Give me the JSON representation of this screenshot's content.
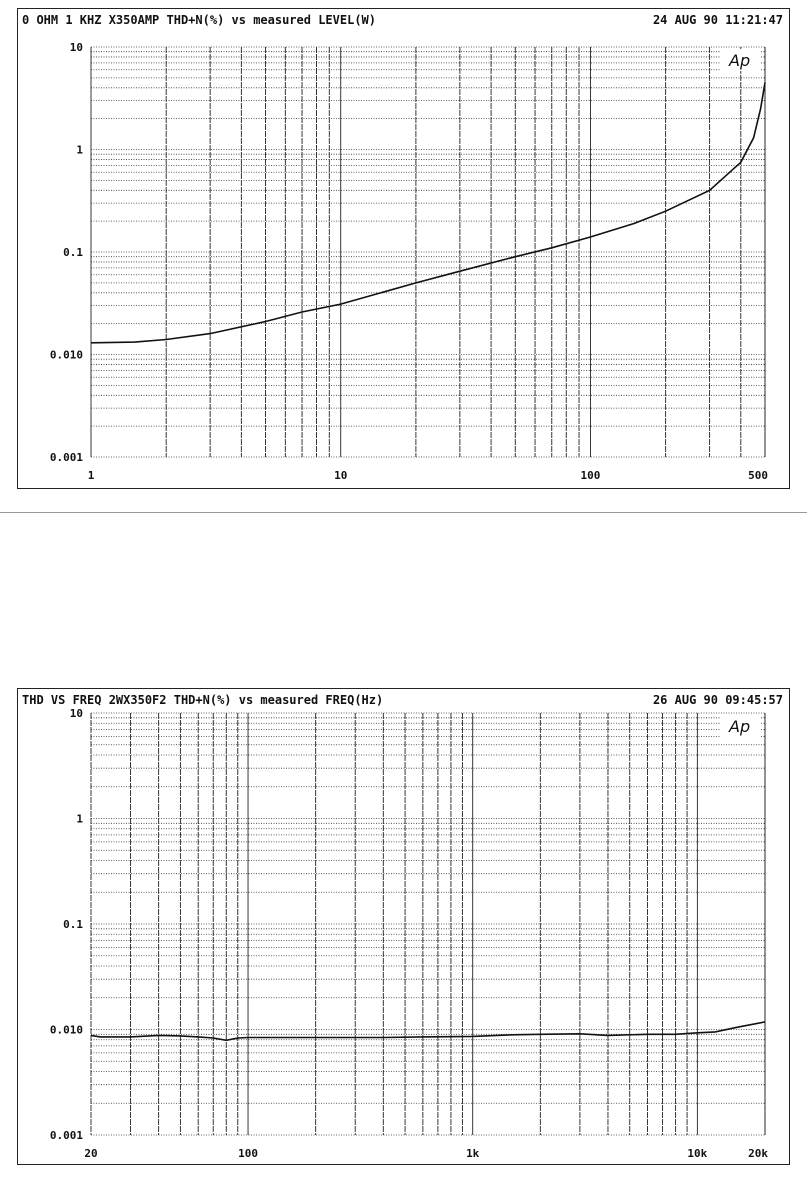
{
  "chart_data": [
    {
      "type": "line",
      "title": "0 OHM 1 KHZ X350AMP THD+N(%) vs measured LEVEL(W)",
      "timestamp": "24 AUG 90 11:21:47",
      "logo": "Ap",
      "x_scale": "log",
      "y_scale": "log",
      "xlim": [
        1,
        500
      ],
      "ylim": [
        0.001,
        10
      ],
      "x_ticks": [
        "1",
        "10",
        "100",
        "500"
      ],
      "x_tick_values": [
        1,
        10,
        100,
        500
      ],
      "y_ticks": [
        "10",
        "1",
        "0.1",
        "0.010",
        "0.001"
      ],
      "y_tick_values": [
        10,
        1,
        0.1,
        0.01,
        0.001
      ],
      "grid": true,
      "x": [
        1,
        1.5,
        2,
        3,
        5,
        7,
        10,
        20,
        30,
        50,
        70,
        100,
        150,
        200,
        300,
        400,
        450,
        480,
        500
      ],
      "y": [
        0.013,
        0.0132,
        0.014,
        0.016,
        0.021,
        0.026,
        0.031,
        0.05,
        0.065,
        0.09,
        0.11,
        0.14,
        0.19,
        0.25,
        0.4,
        0.75,
        1.3,
        2.5,
        4.5
      ],
      "color": "#111111"
    },
    {
      "type": "line",
      "title": "THD VS FREQ 2WX350F2 THD+N(%) vs measured FREQ(Hz)",
      "timestamp": "26 AUG 90 09:45:57",
      "logo": "Ap",
      "x_scale": "log",
      "y_scale": "log",
      "xlim": [
        20,
        20000
      ],
      "ylim": [
        0.001,
        10
      ],
      "x_ticks": [
        "20",
        "100",
        "1k",
        "10k",
        "20k"
      ],
      "x_tick_values": [
        20,
        100,
        1000,
        10000,
        20000
      ],
      "y_ticks": [
        "10",
        "1",
        "0.1",
        "0.010",
        "0.001"
      ],
      "y_tick_values": [
        10,
        1,
        0.1,
        0.01,
        0.001
      ],
      "grid": true,
      "x": [
        20,
        22,
        30,
        40,
        50,
        60,
        70,
        80,
        90,
        100,
        200,
        400,
        600,
        1000,
        1500,
        2000,
        3000,
        4000,
        6000,
        8000,
        10000,
        12000,
        15000,
        20000
      ],
      "y": [
        0.0088,
        0.0085,
        0.0085,
        0.0088,
        0.0087,
        0.0085,
        0.0083,
        0.0079,
        0.0083,
        0.0084,
        0.0084,
        0.0084,
        0.0085,
        0.0086,
        0.0089,
        0.009,
        0.0091,
        0.0088,
        0.009,
        0.009,
        0.0093,
        0.0095,
        0.0105,
        0.0118
      ],
      "color": "#111111"
    }
  ]
}
